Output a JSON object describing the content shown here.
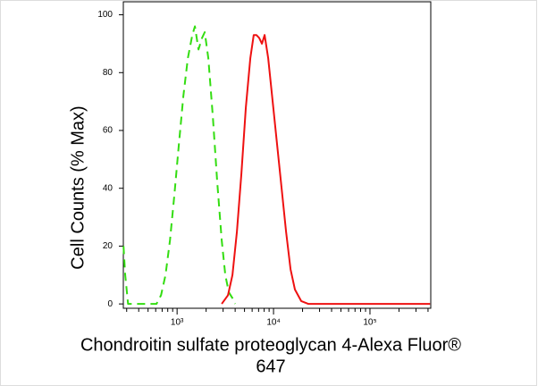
{
  "chart_data": {
    "type": "line",
    "x_label": [
      "Chondroitin sulfate proteoglycan 4-Alexa Fluor®",
      "647"
    ],
    "y_label": "Cell Counts (% Max)",
    "xscale": "log",
    "xlim": [
      277,
      427000
    ],
    "ylim": [
      -1.5,
      104.5
    ],
    "xticks": [
      {
        "value": 1000,
        "label": "10³"
      },
      {
        "value": 10000,
        "label": "10⁴"
      },
      {
        "value": 100000,
        "label": "10⁵"
      }
    ],
    "xminorticks": [
      300,
      400,
      500,
      600,
      700,
      800,
      900,
      2000,
      3000,
      4000,
      5000,
      6000,
      7000,
      8000,
      9000,
      20000,
      30000,
      40000,
      50000,
      60000,
      70000,
      80000,
      90000,
      200000,
      300000,
      400000
    ],
    "yticks": [
      0,
      20,
      40,
      60,
      80,
      100
    ],
    "series": [
      {
        "color": "#33dd11",
        "line_style": "dashed",
        "x": [
          278,
          290,
          310,
          612,
          681,
          758,
          843,
          938,
          1043,
          1161,
          1292,
          1437,
          1531,
          1668,
          1815,
          1936,
          2108,
          2345,
          2609,
          2903,
          3163,
          3441,
          3748,
          4000
        ],
        "values": [
          20,
          10,
          0,
          0,
          3,
          10,
          22,
          38,
          55,
          72,
          85,
          93,
          96,
          88,
          92,
          94,
          85,
          65,
          42,
          22,
          10,
          4,
          2,
          0
        ]
      },
      {
        "color": "#ee1111",
        "line_style": "solid",
        "x": [
          2903,
          3368,
          3748,
          4169,
          4642,
          5164,
          5744,
          6230,
          6644,
          7096,
          7576,
          8085,
          8800,
          9790,
          10890,
          12120,
          13480,
          15000,
          16680,
          19330,
          22900,
          420000
        ],
        "values": [
          0,
          3,
          10,
          25,
          45,
          68,
          85,
          93,
          93,
          92,
          90,
          93,
          85,
          70,
          55,
          40,
          25,
          12,
          5,
          1,
          0,
          0
        ]
      }
    ]
  }
}
